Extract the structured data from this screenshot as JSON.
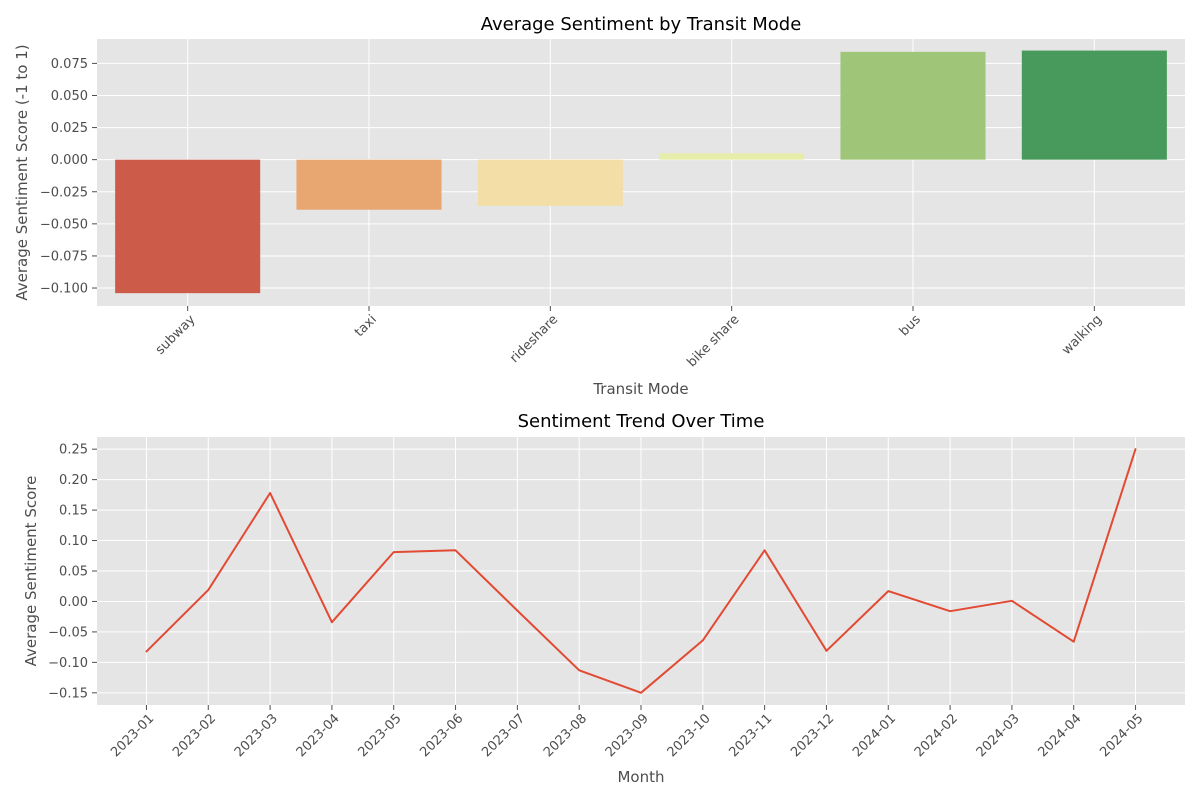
{
  "chart_data": [
    {
      "type": "bar",
      "title": "Average Sentiment by Transit Mode",
      "xlabel": "Transit Mode",
      "ylabel": "Average Sentiment Score (-1 to 1)",
      "categories": [
        "subway",
        "taxi",
        "rideshare",
        "bike share",
        "bus",
        "walking"
      ],
      "values": [
        -0.104,
        -0.039,
        -0.036,
        0.005,
        0.084,
        0.085
      ],
      "colors": [
        "#cd5b4a",
        "#e8a671",
        "#f2dea6",
        "#e6edaa",
        "#9fc678",
        "#489a5c"
      ],
      "ylim": [
        -0.114,
        0.094
      ],
      "yticks": [
        -0.1,
        -0.075,
        -0.05,
        -0.025,
        0.0,
        0.025,
        0.05,
        0.075
      ],
      "ytick_labels": [
        "−0.100",
        "−0.075",
        "−0.050",
        "−0.025",
        "0.000",
        "0.025",
        "0.050",
        "0.075"
      ],
      "grid": true
    },
    {
      "type": "line",
      "title": "Sentiment Trend Over Time",
      "xlabel": "Month",
      "ylabel": "Average Sentiment Score",
      "x": [
        "2023-01",
        "2023-02",
        "2023-03",
        "2023-04",
        "2023-05",
        "2023-06",
        "2023-07",
        "2023-08",
        "2023-09",
        "2023-10",
        "2023-11",
        "2023-12",
        "2024-01",
        "2024-02",
        "2024-03",
        "2024-04",
        "2024-05"
      ],
      "values": [
        -0.082,
        0.019,
        0.178,
        -0.034,
        0.081,
        0.084,
        -0.015,
        -0.113,
        -0.15,
        -0.064,
        0.084,
        -0.081,
        0.017,
        -0.016,
        0.001,
        -0.066,
        0.25
      ],
      "color": "#e24a33",
      "ylim": [
        -0.17,
        0.27
      ],
      "yticks": [
        -0.15,
        -0.1,
        -0.05,
        0.0,
        0.05,
        0.1,
        0.15,
        0.2,
        0.25
      ],
      "ytick_labels": [
        "−0.15",
        "−0.10",
        "−0.05",
        "0.00",
        "0.05",
        "0.10",
        "0.15",
        "0.20",
        "0.25"
      ],
      "grid": true
    }
  ]
}
